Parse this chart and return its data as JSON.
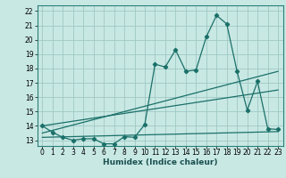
{
  "xlabel": "Humidex (Indice chaleur)",
  "bg_color": "#c8e8e4",
  "line_color": "#1a7068",
  "grid_color": "#a0c8c4",
  "xlim": [
    -0.5,
    23.5
  ],
  "ylim": [
    12.6,
    22.4
  ],
  "yticks": [
    13,
    14,
    15,
    16,
    17,
    18,
    19,
    20,
    21,
    22
  ],
  "xticks": [
    0,
    1,
    2,
    3,
    4,
    5,
    6,
    7,
    8,
    9,
    10,
    11,
    12,
    13,
    14,
    15,
    16,
    17,
    18,
    19,
    20,
    21,
    22,
    23
  ],
  "xtick_labels": [
    "0",
    "1",
    "2",
    "3",
    "4",
    "5",
    "6",
    "7",
    "8",
    "9",
    "10",
    "11",
    "12",
    "13",
    "14",
    "15",
    "16",
    "17",
    "18",
    "19",
    "20",
    "21",
    "22",
    "23"
  ],
  "line1_x": [
    0,
    1,
    2,
    3,
    4,
    5,
    6,
    7,
    8,
    9,
    10,
    11,
    12,
    13,
    14,
    15,
    16,
    17,
    18,
    19,
    20,
    21,
    22,
    23
  ],
  "line1_y": [
    14.0,
    13.55,
    13.2,
    13.0,
    13.1,
    13.1,
    12.75,
    12.75,
    13.25,
    13.2,
    14.1,
    18.3,
    18.1,
    19.3,
    17.8,
    17.9,
    20.2,
    21.7,
    21.1,
    17.8,
    15.1,
    17.1,
    13.8,
    13.75
  ],
  "line2_x": [
    0,
    23
  ],
  "line2_y": [
    13.5,
    17.8
  ],
  "line3_x": [
    0,
    23
  ],
  "line3_y": [
    14.0,
    16.5
  ],
  "line4_x": [
    0,
    23
  ],
  "line4_y": [
    13.2,
    13.6
  ]
}
